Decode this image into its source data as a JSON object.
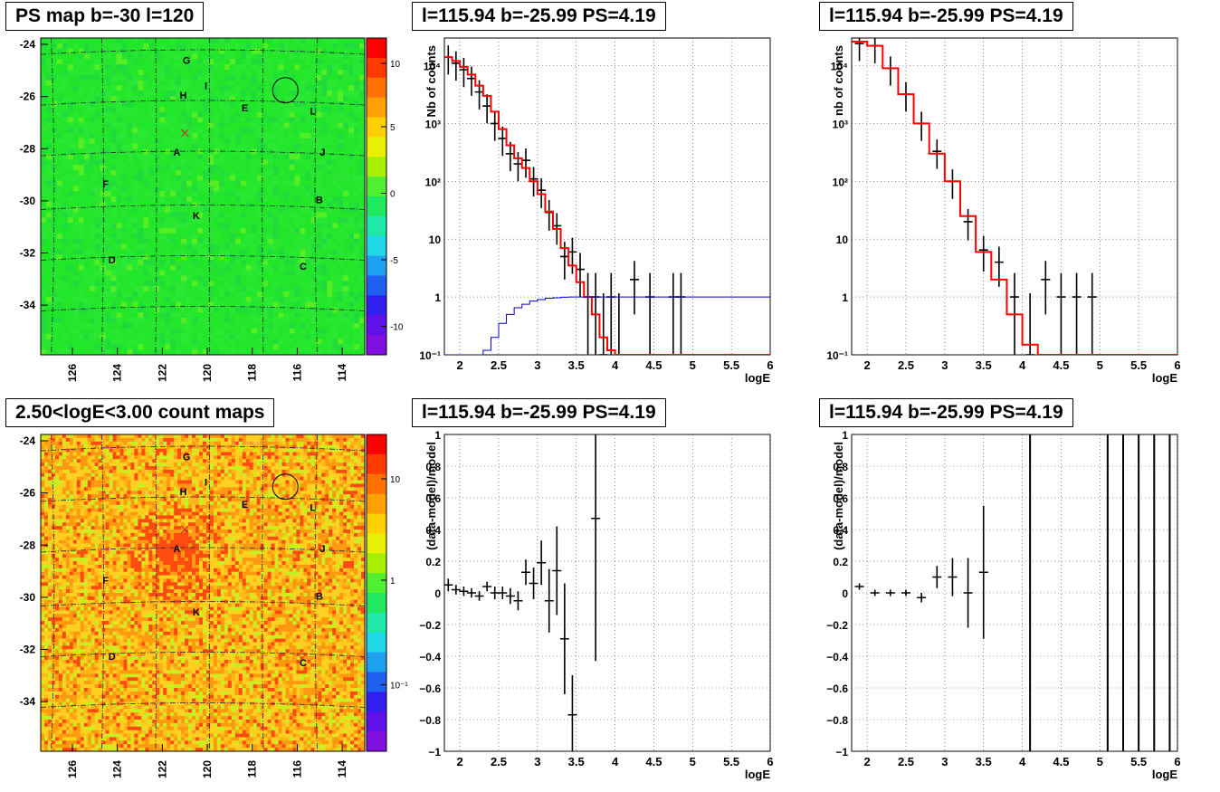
{
  "panels": {
    "ps_map": {
      "title": "PS map b=-30 l=120",
      "y_ticks": [
        "-24",
        "-26",
        "-28",
        "-30",
        "-32",
        "-34"
      ],
      "x_ticks": [
        "126",
        "124",
        "122",
        "120",
        "118",
        "116",
        "114"
      ],
      "colorbar_ticks": [
        "10",
        "5",
        "0",
        "-5",
        "-10"
      ]
    },
    "count_map": {
      "title": "2.50<logE<3.00 count maps",
      "y_ticks": [
        "-24",
        "-26",
        "-28",
        "-30",
        "-32",
        "-34"
      ],
      "x_ticks": [
        "126",
        "124",
        "122",
        "120",
        "118",
        "116",
        "114"
      ],
      "colorbar_ticks": [
        "10",
        "1",
        "10⁻¹"
      ]
    },
    "source_labels": [
      "G",
      "H",
      "I",
      "E",
      "L",
      "A",
      "J",
      "F",
      "B",
      "K",
      "D",
      "C"
    ],
    "spectrum_left": {
      "title": "l=115.94 b=-25.99 PS=4.19"
    },
    "spectrum_right": {
      "title": "l=115.94 b=-25.99 PS=4.19"
    },
    "residual_left": {
      "title": "l=115.94 b=-25.99 PS=4.19"
    },
    "residual_right": {
      "title": "l=115.94 b=-25.99 PS=4.19"
    }
  },
  "chart_data": [
    {
      "type": "scatter",
      "title": "l=115.94 b=-25.99 PS=4.19",
      "xlabel": "logE",
      "ylabel": "Nb of counts",
      "xlim": [
        1.8,
        6
      ],
      "ylim": [
        0.1,
        30000
      ],
      "yscale": "log",
      "grid": true,
      "x_ticks": [
        "2",
        "2.5",
        "3",
        "3.5",
        "4",
        "4.5",
        "5",
        "5.5",
        "6"
      ],
      "y_ticks": [
        "10⁻¹",
        "1",
        "10",
        "10²",
        "10³",
        "10⁴"
      ],
      "series": [
        {
          "style": "points",
          "x": [
            1.85,
            1.95,
            2.05,
            2.15,
            2.25,
            2.35,
            2.45,
            2.55,
            2.65,
            2.75,
            2.85,
            2.95,
            3.05,
            3.15,
            3.25,
            3.35,
            3.45,
            3.55,
            3.65,
            3.75,
            3.85,
            3.95,
            4.05,
            4.25,
            4.45,
            4.75,
            4.85
          ],
          "y": [
            14000,
            11000,
            8500,
            6000,
            3500,
            2000,
            1000,
            550,
            300,
            200,
            230,
            110,
            70,
            29,
            17,
            5,
            6,
            3,
            1,
            1,
            0.1,
            1,
            0.1,
            2,
            1,
            1,
            1
          ],
          "color": "#000000"
        },
        {
          "style": "step",
          "x": [
            1.8,
            1.9,
            2.0,
            2.1,
            2.2,
            2.3,
            2.4,
            2.5,
            2.6,
            2.7,
            2.8,
            2.9,
            3.0,
            3.1,
            3.2,
            3.3,
            3.4,
            3.5,
            3.6,
            3.7,
            3.8,
            3.9,
            4.0,
            6.0
          ],
          "y": [
            14000,
            12000,
            9500,
            7000,
            4500,
            3000,
            1600,
            800,
            420,
            250,
            170,
            100,
            60,
            30,
            15,
            7,
            3.5,
            1.8,
            1.0,
            0.5,
            0.2,
            0.12,
            0.1,
            0.1
          ],
          "color": "#ff0000"
        },
        {
          "style": "step",
          "x": [
            1.8,
            2.0,
            2.2,
            2.3,
            2.4,
            2.5,
            2.6,
            2.7,
            2.8,
            2.9,
            3.0,
            3.1,
            3.2,
            3.3,
            3.4,
            3.5,
            3.6,
            6.0
          ],
          "y": [
            0.1,
            0.1,
            0.1,
            0.12,
            0.2,
            0.35,
            0.5,
            0.65,
            0.75,
            0.85,
            0.9,
            0.95,
            0.97,
            0.99,
            1,
            1,
            1,
            1
          ],
          "color": "#0000cc"
        }
      ]
    },
    {
      "type": "scatter",
      "title": "l=115.94 b=-25.99 PS=4.19",
      "xlabel": "logE",
      "ylabel": "nb of counts",
      "xlim": [
        1.8,
        6
      ],
      "ylim": [
        0.1,
        30000
      ],
      "yscale": "log",
      "grid": true,
      "x_ticks": [
        "2",
        "2.5",
        "3",
        "3.5",
        "4",
        "4.5",
        "5",
        "5.5",
        "6"
      ],
      "y_ticks": [
        "10⁻¹",
        "1",
        "10",
        "10²",
        "10³",
        "10⁴"
      ],
      "series": [
        {
          "style": "points",
          "x": [
            1.9,
            2.1,
            2.3,
            2.5,
            2.7,
            2.9,
            3.1,
            3.3,
            3.5,
            3.7,
            3.9,
            4.1,
            4.3,
            4.5,
            4.7,
            4.9
          ],
          "y": [
            24000,
            22000,
            9000,
            3200,
            1000,
            330,
            100,
            20,
            6.5,
            4,
            1,
            0.1,
            2,
            1,
            1,
            1
          ],
          "color": "#000000"
        },
        {
          "style": "step",
          "x": [
            1.8,
            2.0,
            2.2,
            2.4,
            2.6,
            2.8,
            3.0,
            3.2,
            3.4,
            3.6,
            3.8,
            4.0,
            4.2,
            4.4,
            6.0
          ],
          "y": [
            26000,
            22000,
            9000,
            3200,
            1000,
            300,
            100,
            25,
            6,
            2,
            0.5,
            0.15,
            0.1,
            0.1,
            0.1
          ],
          "color": "#ff0000"
        }
      ]
    },
    {
      "type": "scatter",
      "title": "l=115.94 b=-25.99 PS=4.19",
      "xlabel": "logE",
      "ylabel": "(data-model)/model",
      "xlim": [
        1.8,
        6
      ],
      "ylim": [
        -1,
        1
      ],
      "grid": true,
      "x_ticks": [
        "2",
        "2.5",
        "3",
        "3.5",
        "4",
        "4.5",
        "5",
        "5.5",
        "6"
      ],
      "y_ticks": [
        "−1",
        "−0.8",
        "−0.6",
        "−0.4",
        "−0.2",
        "0",
        "0.2",
        "0.4",
        "0.6",
        "0.8",
        "1"
      ],
      "series": [
        {
          "style": "errorbars",
          "x": [
            1.85,
            1.95,
            2.05,
            2.15,
            2.25,
            2.35,
            2.45,
            2.55,
            2.65,
            2.75,
            2.85,
            2.95,
            3.05,
            3.15,
            3.25,
            3.35,
            3.45,
            3.75
          ],
          "y": [
            0.05,
            0.02,
            0.01,
            0.0,
            -0.02,
            0.04,
            0.0,
            0.0,
            -0.02,
            -0.05,
            0.13,
            0.06,
            0.19,
            -0.05,
            0.14,
            -0.29,
            -0.77,
            0.47
          ],
          "err": [
            0.04,
            0.03,
            0.03,
            0.03,
            0.03,
            0.03,
            0.04,
            0.04,
            0.05,
            0.06,
            0.08,
            0.1,
            0.14,
            0.2,
            0.28,
            0.35,
            0.25,
            0.9
          ],
          "color": "#000000"
        }
      ]
    },
    {
      "type": "scatter",
      "title": "l=115.94 b=-25.99 PS=4.19",
      "xlabel": "logE",
      "ylabel": "(data-model)/model",
      "xlim": [
        1.8,
        6
      ],
      "ylim": [
        -1,
        1
      ],
      "grid": true,
      "x_ticks": [
        "2",
        "2.5",
        "3",
        "3.5",
        "4",
        "4.5",
        "5",
        "5.5",
        "6"
      ],
      "y_ticks": [
        "−1",
        "−0.8",
        "−0.6",
        "−0.4",
        "−0.2",
        "0",
        "0.2",
        "0.4",
        "0.6",
        "0.8",
        "1"
      ],
      "series": [
        {
          "style": "errorbars",
          "x": [
            1.9,
            2.1,
            2.3,
            2.5,
            2.7,
            2.9,
            3.1,
            3.3,
            3.5
          ],
          "y": [
            0.04,
            0.0,
            0.0,
            0.0,
            -0.03,
            0.1,
            0.1,
            0.0,
            0.13
          ],
          "err": [
            0.02,
            0.02,
            0.02,
            0.02,
            0.03,
            0.07,
            0.12,
            0.22,
            0.42
          ],
          "color": "#000000"
        },
        {
          "style": "vlines",
          "x": [
            4.1,
            5.1,
            5.3,
            5.5,
            5.7,
            5.9
          ],
          "color": "#000000"
        }
      ]
    }
  ]
}
